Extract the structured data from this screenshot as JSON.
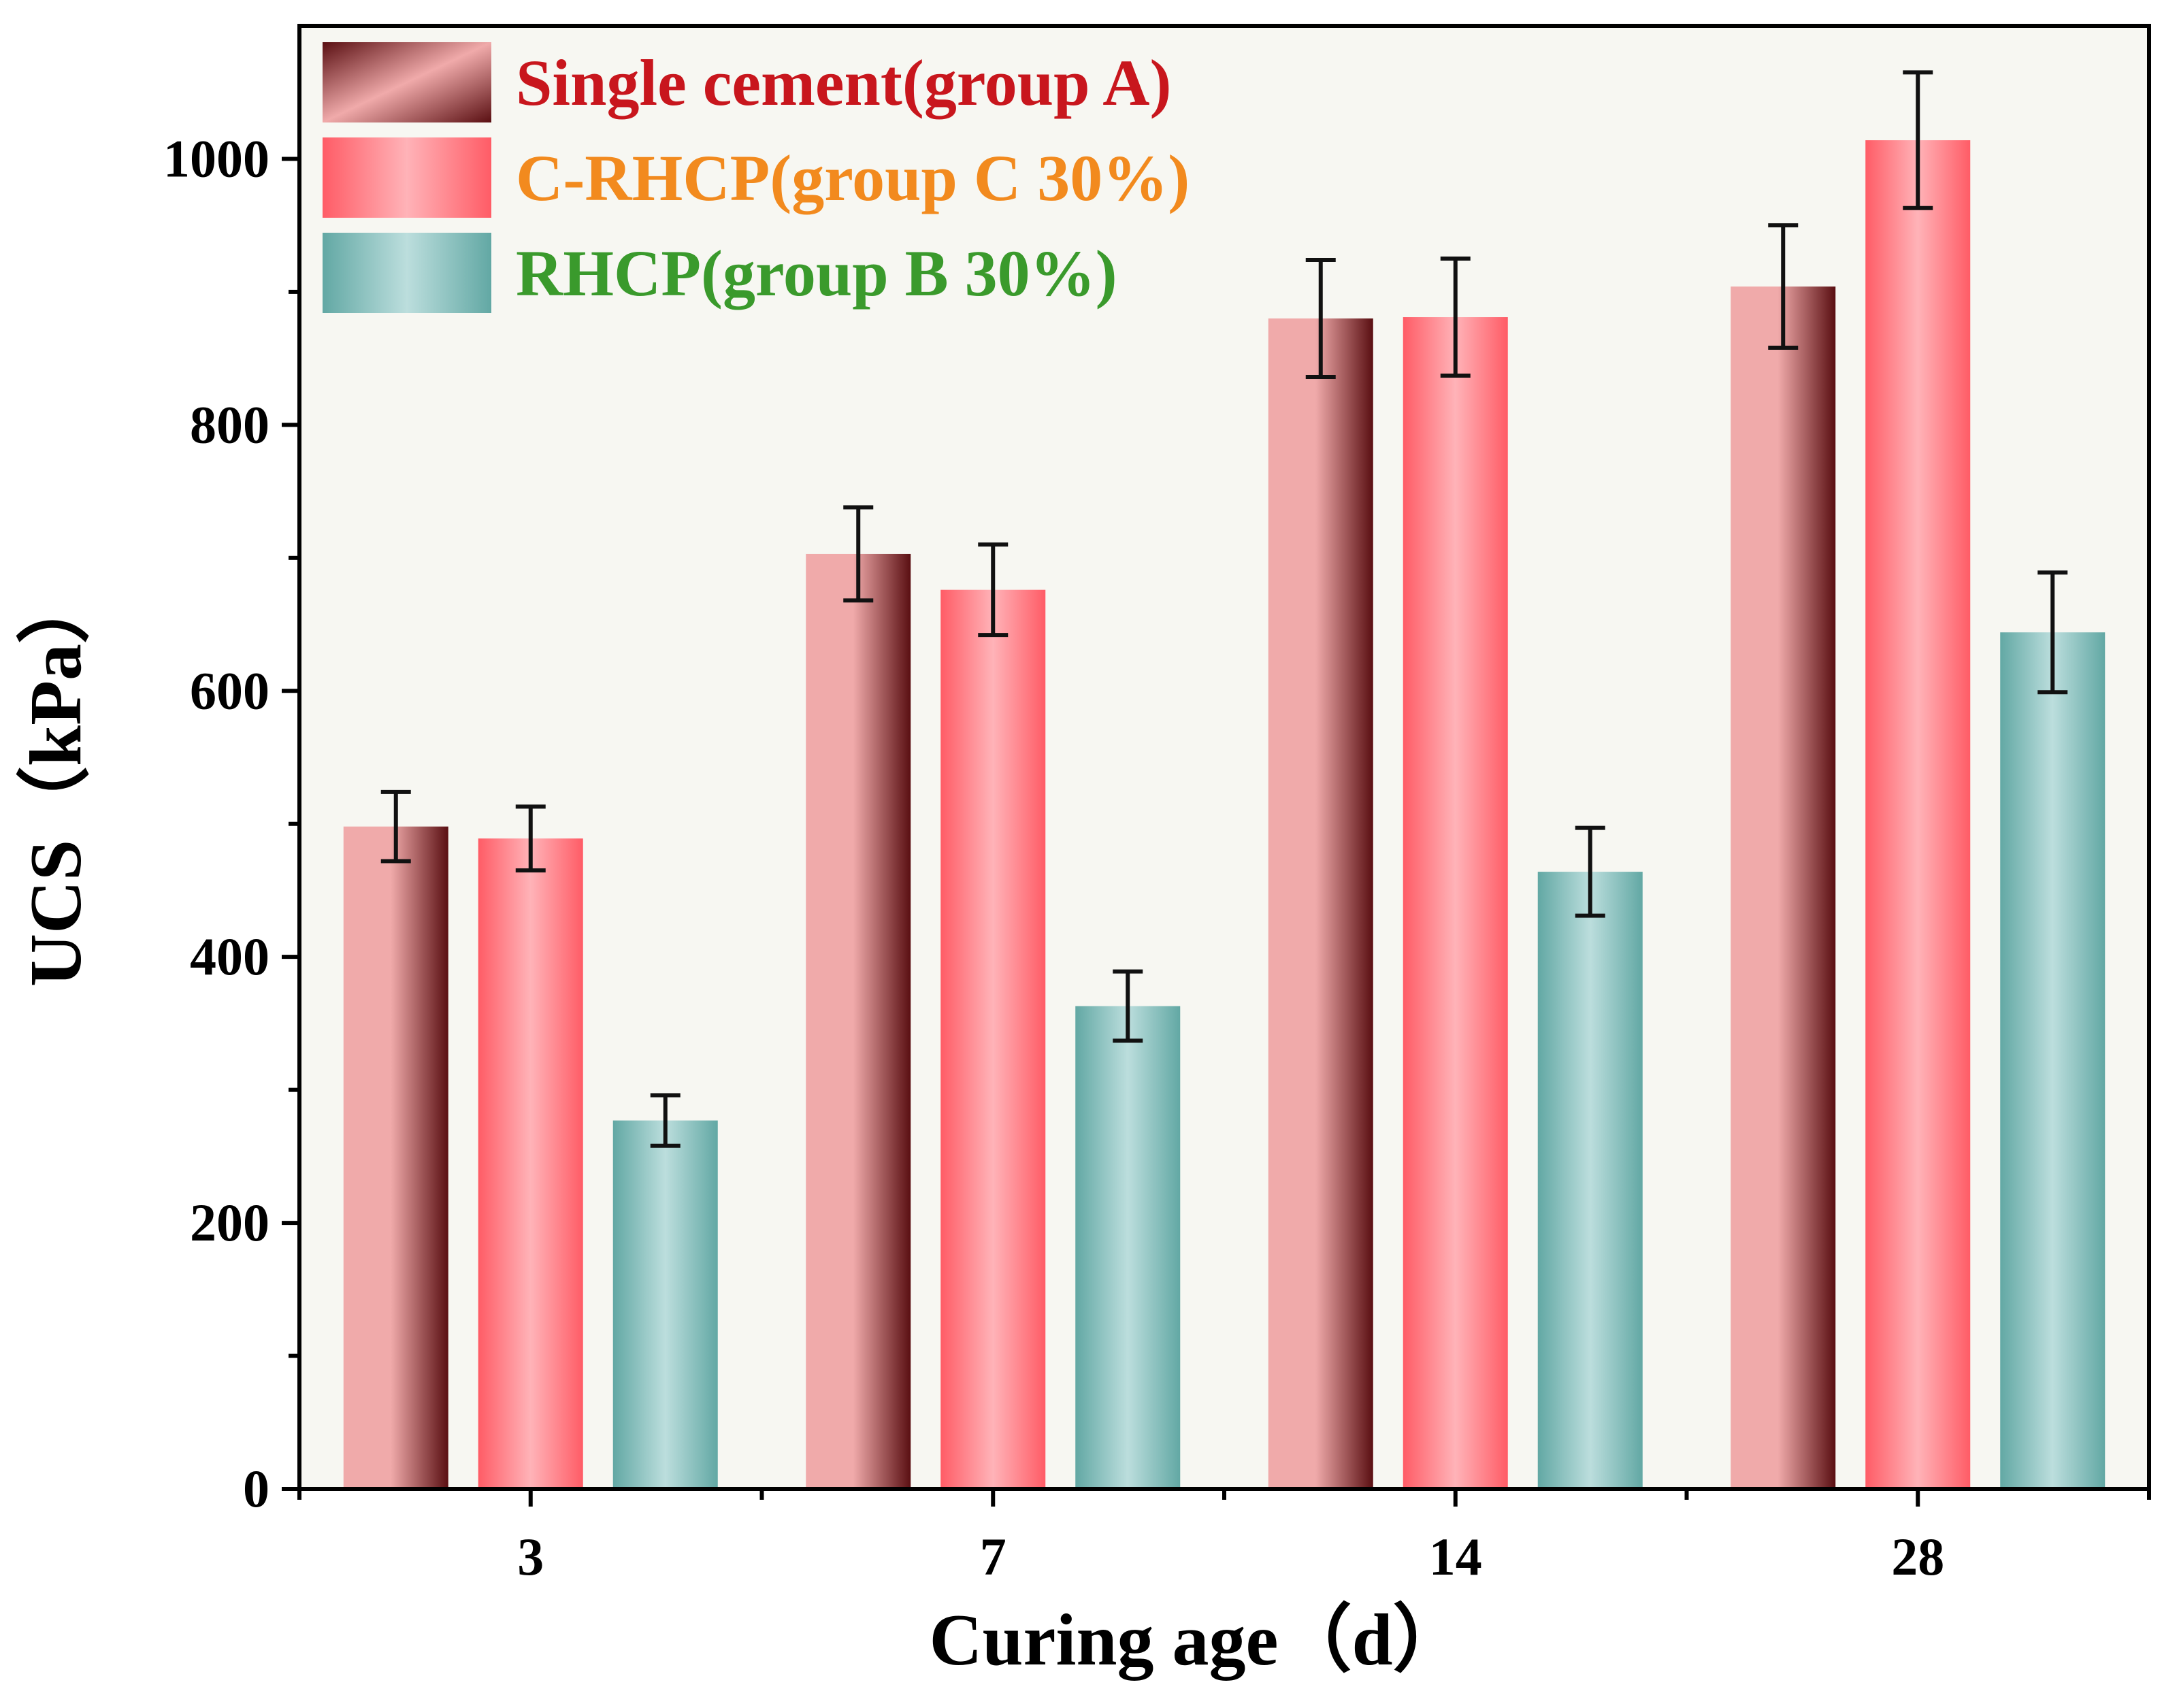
{
  "chart_data": {
    "type": "bar",
    "title": "",
    "xlabel": "Curing age（d）",
    "ylabel": "UCS（kPa）",
    "categories": [
      "3",
      "7",
      "14",
      "28"
    ],
    "ylim": [
      0,
      1100
    ],
    "yticks": [
      0,
      200,
      400,
      600,
      800,
      1000
    ],
    "grid": false,
    "legend_position": "top-left",
    "series": [
      {
        "name": "Single cement(group A)",
        "values": [
          498,
          703,
          880,
          904
        ],
        "errors": [
          26,
          35,
          44,
          46
        ],
        "gradient": [
          "#5a0f12",
          "#f0aaaa"
        ],
        "legend_color": "#c8161d"
      },
      {
        "name": "C-RHCP(group C 30%)",
        "values": [
          489,
          676,
          881,
          1014
        ],
        "errors": [
          24,
          34,
          44,
          51
        ],
        "gradient": [
          "#ff5c66",
          "#ffb3b8"
        ],
        "legend_color": "#f28a1e"
      },
      {
        "name": "RHCP(group B 30%)",
        "values": [
          277,
          363,
          464,
          644
        ],
        "errors": [
          19,
          26,
          33,
          45
        ],
        "gradient": [
          "#62a8a4",
          "#bcdedd"
        ],
        "legend_color": "#3a9a2c"
      }
    ]
  }
}
